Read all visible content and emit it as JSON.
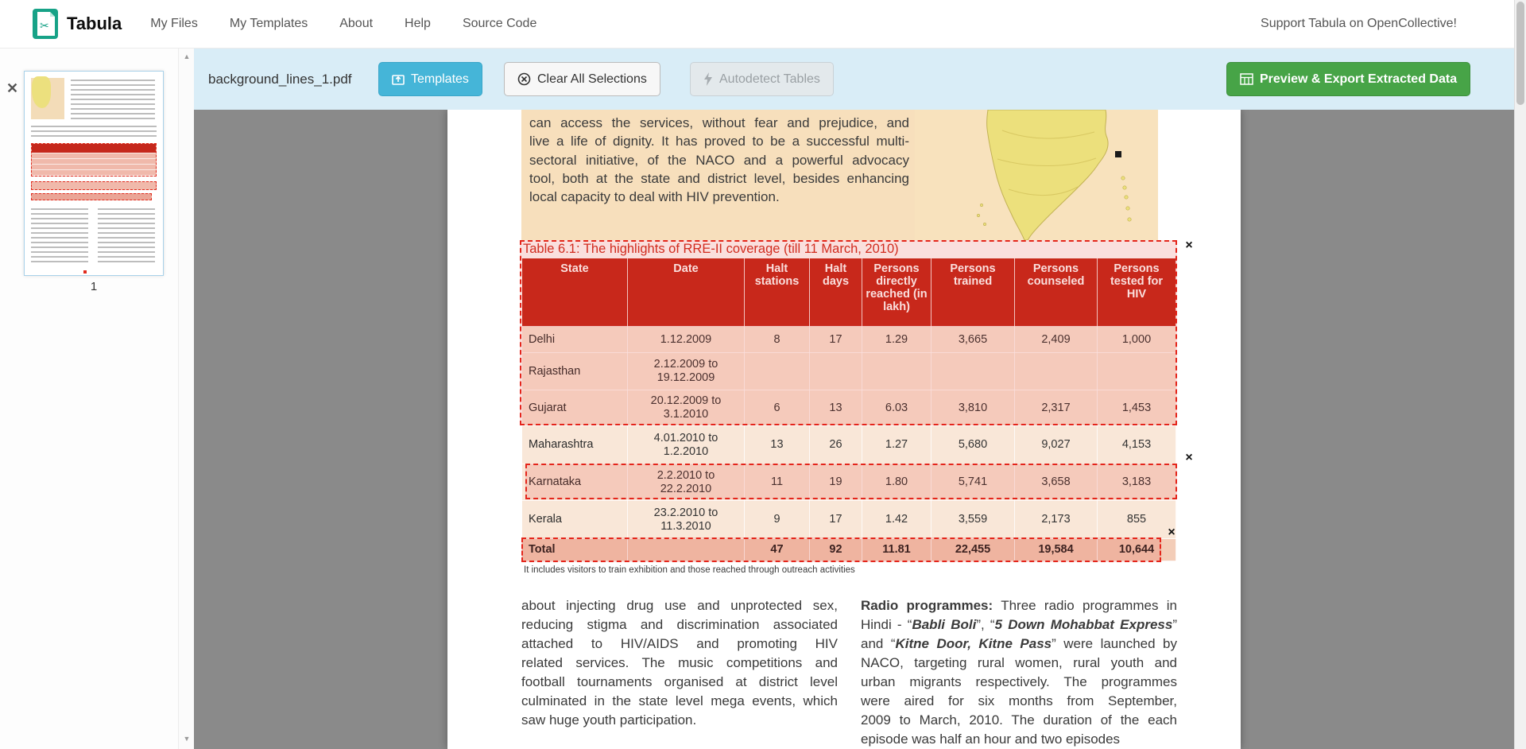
{
  "navbar": {
    "brand": "Tabula",
    "items": [
      {
        "label": "My Files"
      },
      {
        "label": "My Templates"
      },
      {
        "label": "About"
      },
      {
        "label": "Help"
      },
      {
        "label": "Source Code"
      }
    ],
    "support_link": "Support Tabula on OpenCollective!"
  },
  "toolbar": {
    "filename": "background_lines_1.pdf",
    "templates_label": "Templates",
    "clear_label": "Clear All Selections",
    "autodetect_label": "Autodetect Tables",
    "export_label": "Preview & Export Extracted Data"
  },
  "sidebar": {
    "page_number": "1"
  },
  "icons": {
    "close": "✕",
    "remove": "×",
    "scroll_up": "▲",
    "scroll_down": "▼"
  },
  "colors": {
    "toolbar_bg": "#d9edf7",
    "templates_button": "#45b5d8",
    "export_button": "#47a447",
    "table_header_red": "#c5281c",
    "selection_red": "#e4251b",
    "workspace_gray": "#8a8a8a",
    "panel_tan": "#f7dfbc"
  },
  "document": {
    "intro_lines": [
      "can access the services, without fear and prejudice, and",
      "live a life of dignity. It has proved to be a successful multi-",
      "sectoral initiative, of the NACO and a powerful advocacy",
      "tool, both at the state and district level, besides enhancing",
      "local capacity to deal with HIV prevention."
    ],
    "table_title": "Table 6.1: The highlights of RRE-II coverage (till 11 March, 2010)",
    "table": {
      "headers": [
        "State",
        "Date",
        "Halt stations",
        "Halt days",
        "Persons directly reached (in lakh)",
        "Persons trained",
        "Persons counseled",
        "Persons tested for HIV"
      ],
      "rows": [
        [
          "Delhi",
          "1.12.2009",
          "8",
          "17",
          "1.29",
          "3,665",
          "2,409",
          "1,000"
        ],
        [
          "Rajasthan",
          "2.12.2009 to 19.12.2009",
          "",
          "",
          "",
          "",
          "",
          ""
        ],
        [
          "Gujarat",
          "20.12.2009 to 3.1.2010",
          "6",
          "13",
          "6.03",
          "3,810",
          "2,317",
          "1,453"
        ],
        [
          "Maharashtra",
          "4.01.2010 to 1.2.2010",
          "13",
          "26",
          "1.27",
          "5,680",
          "9,027",
          "4,153"
        ],
        [
          "Karnataka",
          "2.2.2010 to 22.2.2010",
          "11",
          "19",
          "1.80",
          "5,741",
          "3,658",
          "3,183"
        ],
        [
          "Kerala",
          "23.2.2010 to 11.3.2010",
          "9",
          "17",
          "1.42",
          "3,559",
          "2,173",
          "855"
        ],
        [
          "Total",
          "",
          "47",
          "92",
          "11.81",
          "22,455",
          "19,584",
          "10,644"
        ]
      ]
    },
    "table_note": "It includes visitors to train exhibition and those reached through outreach activities",
    "left_column_lines": [
      "about injecting drug use and unprotected sex,",
      "reducing stigma and discrimination associated",
      "attached to HIV/AIDS and promoting HIV",
      "related services. The music competitions and",
      "football tournaments organised at district level",
      "culminated in the state level mega events, which",
      "saw huge youth participation."
    ],
    "right_column_lines": [
      [
        {
          "t": "Radio programmes:",
          "b": true
        },
        {
          "t": " Three radio programmes in"
        }
      ],
      [
        {
          "t": "Hindi - “"
        },
        {
          "t": "Babli Boli",
          "b": true,
          "i": true
        },
        {
          "t": "”, “"
        },
        {
          "t": "5 Down Mohabbat Express",
          "b": true,
          "i": true
        },
        {
          "t": "”"
        }
      ],
      [
        {
          "t": "and “"
        },
        {
          "t": "Kitne Door, Kitne Pass",
          "b": true,
          "i": true
        },
        {
          "t": "” were launched by"
        }
      ],
      [
        {
          "t": "NACO, targeting rural women, rural youth and"
        }
      ],
      [
        {
          "t": "urban migrants respectively. The programmes"
        }
      ],
      [
        {
          "t": "were aired for six months from September,"
        }
      ],
      [
        {
          "t": "2009 to March, 2010. The duration of the each"
        }
      ],
      [
        {
          "t": "episode was half an hour and two episodes"
        }
      ]
    ]
  }
}
